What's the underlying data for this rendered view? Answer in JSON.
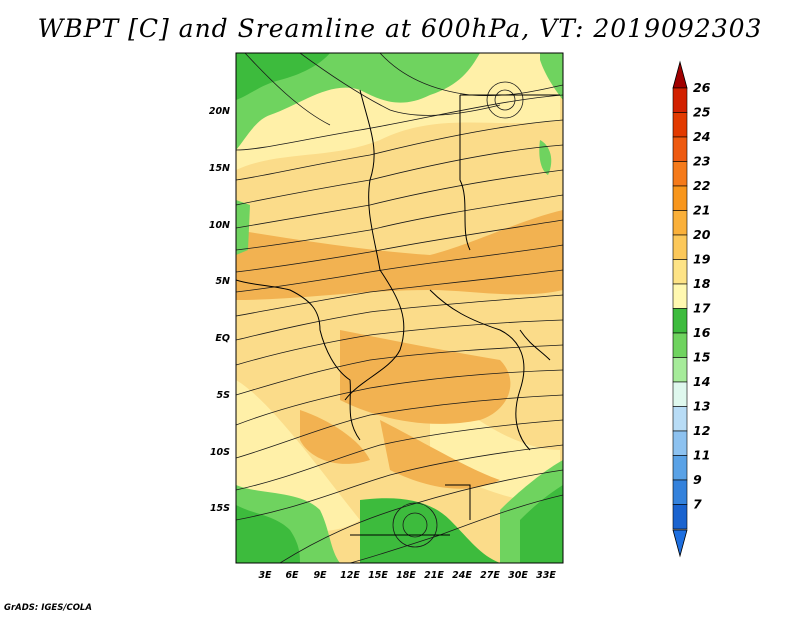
{
  "title": "WBPT [C] and Sreamline at 600hPa, VT: 2019092303",
  "credit": "GrADS: IGES/COLA",
  "map": {
    "lon_labels": [
      "3E",
      "6E",
      "9E",
      "12E",
      "15E",
      "18E",
      "21E",
      "24E",
      "27E",
      "30E",
      "33E"
    ],
    "lat_labels": [
      "20N",
      "15N",
      "10N",
      "5N",
      "EQ",
      "5S",
      "10S",
      "15S"
    ],
    "land_colors": {
      "green_dark": "#3dbb3d",
      "green_mid": "#6fd35f",
      "yellow_pale": "#fff0a8",
      "orange_light": "#f9d27a",
      "orange_mid": "#f2b251"
    }
  },
  "colorbar": {
    "labels": [
      "26",
      "25",
      "24",
      "23",
      "22",
      "21",
      "20",
      "19",
      "18",
      "17",
      "16",
      "15",
      "14",
      "13",
      "12",
      "11",
      "9",
      "7"
    ],
    "colors": [
      "#d22000",
      "#e23a00",
      "#ee5a10",
      "#f57a1a",
      "#f8961c",
      "#fab03a",
      "#fcc85a",
      "#fde386",
      "#fff8b0",
      "#3dbb3d",
      "#6fd35f",
      "#a6eb9a",
      "#dff8ee",
      "#b8dcf6",
      "#8dc2f0",
      "#5aa2e6",
      "#3482dc",
      "#1a63cf"
    ],
    "top_arrow_color": "#a00000",
    "bottom_arrow_color": "#1e6fe0"
  }
}
